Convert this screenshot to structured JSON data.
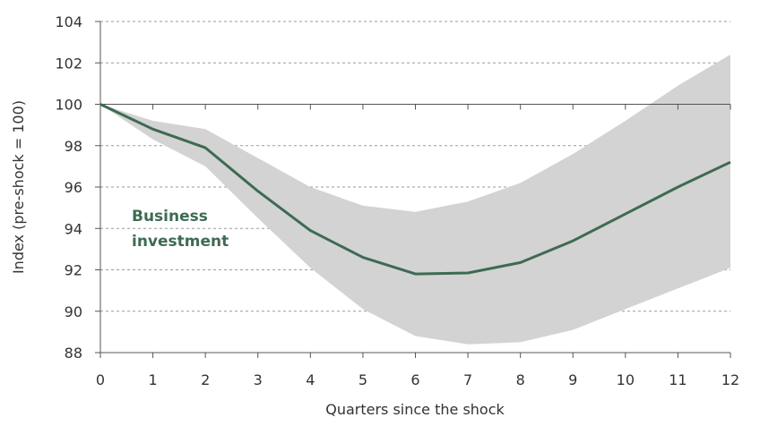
{
  "chart_data": {
    "type": "line",
    "xlabel": "Quarters since the shock",
    "ylabel": "Index (pre-shock = 100)",
    "xlim": [
      0,
      12
    ],
    "ylim": [
      88,
      104
    ],
    "x_ticks": [
      0,
      1,
      2,
      3,
      4,
      5,
      6,
      7,
      8,
      9,
      10,
      11,
      12
    ],
    "y_ticks": [
      88,
      90,
      92,
      94,
      96,
      98,
      100,
      102,
      104
    ],
    "reference_line": 100,
    "grid": "horizontal-dashed",
    "series": [
      {
        "name": "Business investment",
        "color": "#3d6b52",
        "x": [
          0,
          1,
          2,
          3,
          4,
          5,
          6,
          7,
          8,
          9,
          10,
          11,
          12
        ],
        "values": [
          100,
          98.8,
          97.9,
          95.8,
          93.9,
          92.6,
          91.8,
          91.85,
          92.35,
          93.4,
          94.7,
          96.0,
          97.2
        ]
      }
    ],
    "band": {
      "color": "#d3d3d3",
      "x": [
        0,
        1,
        2,
        3,
        4,
        5,
        6,
        7,
        8,
        9,
        10,
        11,
        12
      ],
      "upper": [
        100,
        99.2,
        98.8,
        97.4,
        96.0,
        95.1,
        94.8,
        95.3,
        96.2,
        97.6,
        99.2,
        100.9,
        102.4
      ],
      "lower": [
        100,
        98.3,
        97.0,
        94.5,
        92.1,
        90.1,
        88.8,
        88.4,
        88.5,
        89.1,
        90.1,
        91.1,
        92.1
      ]
    }
  }
}
